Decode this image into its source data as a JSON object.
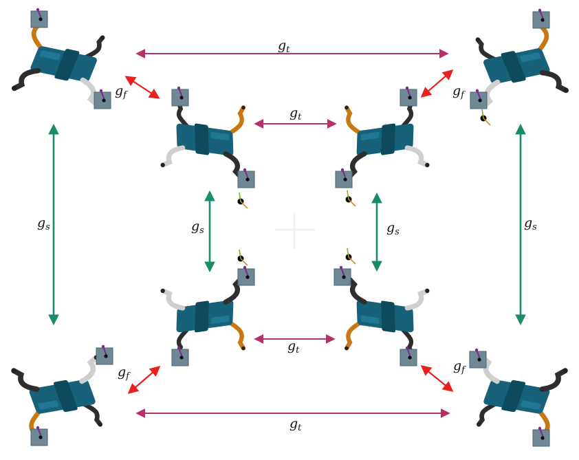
{
  "labels": {
    "translation": {
      "base": "g",
      "sub": "t"
    },
    "flip": {
      "base": "g",
      "sub": "f"
    },
    "symmetry": {
      "base": "g",
      "sub": "s"
    }
  },
  "colors": {
    "translation_arrow": "#b5316a",
    "flip_arrow": "#e8201e",
    "symmetry_arrow": "#1a8c6e",
    "body": "#17617a",
    "body_dark": "#0d4a5e",
    "leg_orange": "#c87812",
    "leg_black": "#2e2e2e",
    "leg_white": "#cfcfcf",
    "block": "#6f8894",
    "foot_marker": "#7b2a8a",
    "frame_green": "#7fae1e",
    "frame_orange": "#d08a2a"
  },
  "robots": [
    {
      "id": "outer-top-left"
    },
    {
      "id": "outer-top-right"
    },
    {
      "id": "outer-bottom-left"
    },
    {
      "id": "outer-bottom-right"
    },
    {
      "id": "inner-top-left"
    },
    {
      "id": "inner-top-right"
    },
    {
      "id": "inner-bottom-left"
    },
    {
      "id": "inner-bottom-right"
    }
  ]
}
